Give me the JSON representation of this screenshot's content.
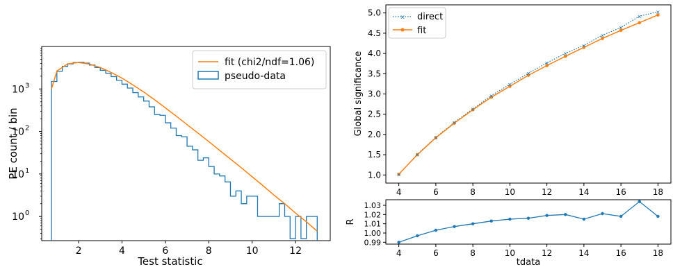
{
  "colors": {
    "blue": "#1f77b4",
    "orange": "#ff7f0e",
    "axis": "#000000"
  },
  "chart_data": [
    {
      "type": "histogram",
      "xlabel": "Test statistic",
      "ylabel": "PE count / bin",
      "yscale": "log",
      "xlim": [
        0.3,
        13.6
      ],
      "ylim": [
        0.27,
        10000
      ],
      "xticks": [
        2,
        4,
        6,
        8,
        10,
        12
      ],
      "xtick_labels": [
        "2",
        "4",
        "6",
        "8",
        "10",
        "12"
      ],
      "yticks": [
        1,
        10,
        100,
        1000
      ],
      "ytick_base": "10",
      "ytick_exps": [
        "0",
        "1",
        "2",
        "3"
      ],
      "legend": {
        "location": "upper right",
        "entries": [
          "fit (chi2/ndf=1.06)",
          "pseudo-data"
        ]
      },
      "series": [
        {
          "name": "pseudo-data",
          "style": "step-outline",
          "bin_edges": [
            0.75,
            1.0,
            1.25,
            1.5,
            1.75,
            2.0,
            2.25,
            2.5,
            2.75,
            3.0,
            3.25,
            3.5,
            3.75,
            4.0,
            4.25,
            4.5,
            4.75,
            5.0,
            5.25,
            5.5,
            5.75,
            6.0,
            6.25,
            6.5,
            6.75,
            7.0,
            7.25,
            7.5,
            7.75,
            8.0,
            8.25,
            8.5,
            8.75,
            9.0,
            9.25,
            9.5,
            9.75,
            10.0,
            10.25,
            10.5,
            10.75,
            11.0,
            11.25,
            11.5,
            11.75,
            12.0,
            12.25,
            12.5,
            12.75,
            13.0
          ],
          "counts": [
            1500,
            2600,
            3400,
            3900,
            4200,
            4250,
            4050,
            3650,
            3200,
            2750,
            2350,
            1950,
            1600,
            1300,
            1050,
            820,
            650,
            520,
            380,
            250,
            240,
            160,
            120,
            80,
            75,
            45,
            37,
            21,
            24,
            15,
            10,
            9,
            6.5,
            3,
            4,
            2,
            3,
            3,
            1,
            1,
            1,
            1,
            2,
            1,
            0.3,
            1,
            0.3,
            1,
            1
          ]
        },
        {
          "name": "fit (chi2/ndf=1.06)",
          "style": "line",
          "x": [
            0.75,
            1.0,
            1.5,
            2.0,
            2.5,
            3.0,
            3.5,
            4.0,
            4.5,
            5.0,
            5.5,
            6.0,
            6.5,
            7.0,
            7.5,
            8.0,
            8.5,
            9.0,
            9.5,
            10.0,
            10.5,
            11.0,
            11.5,
            12.0,
            12.5,
            13.0
          ],
          "y": [
            1000,
            2650,
            3900,
            4200,
            3850,
            3200,
            2450,
            1800,
            1250,
            850,
            560,
            360,
            230,
            145,
            92,
            58,
            36,
            22.5,
            14,
            8.6,
            5.3,
            3.2,
            2.0,
            1.2,
            0.75,
            0.45
          ]
        }
      ]
    },
    {
      "type": "line",
      "xlabel": "",
      "ylabel": "Global significance",
      "xlim": [
        3.3,
        18.7
      ],
      "ylim": [
        0.8,
        5.2
      ],
      "xticks": [
        4,
        6,
        8,
        10,
        12,
        14,
        16,
        18
      ],
      "xtick_labels": [
        "4",
        "6",
        "8",
        "10",
        "12",
        "14",
        "16",
        "18"
      ],
      "yticks": [
        1.0,
        1.5,
        2.0,
        2.5,
        3.0,
        3.5,
        4.0,
        4.5,
        5.0
      ],
      "ytick_labels": [
        "1.0",
        "1.5",
        "2.0",
        "2.5",
        "3.0",
        "3.5",
        "4.0",
        "4.5",
        "5.0"
      ],
      "legend": {
        "location": "upper left",
        "entries": [
          "direct",
          "fit"
        ]
      },
      "x": [
        4,
        5,
        6,
        7,
        8,
        9,
        10,
        11,
        12,
        13,
        14,
        15,
        16,
        17,
        18
      ],
      "series": [
        {
          "name": "direct",
          "style": "dotted-x",
          "values": [
            1.01,
            1.51,
            1.93,
            2.3,
            2.63,
            2.96,
            3.24,
            3.51,
            3.77,
            4.0,
            4.2,
            4.45,
            4.64,
            4.92,
            5.03
          ]
        },
        {
          "name": "fit",
          "style": "solid-dot",
          "values": [
            1.02,
            1.5,
            1.92,
            2.28,
            2.61,
            2.92,
            3.19,
            3.46,
            3.7,
            3.93,
            4.15,
            4.37,
            4.57,
            4.76,
            4.95
          ]
        }
      ]
    },
    {
      "type": "line",
      "xlabel": "tdata",
      "ylabel": "R",
      "xlim": [
        3.3,
        18.7
      ],
      "ylim": [
        0.988,
        1.036
      ],
      "xticks": [
        4,
        6,
        8,
        10,
        12,
        14,
        16,
        18
      ],
      "xtick_labels": [
        "4",
        "6",
        "8",
        "10",
        "12",
        "14",
        "16",
        "18"
      ],
      "yticks": [
        0.99,
        1.0,
        1.01,
        1.02,
        1.03
      ],
      "ytick_labels": [
        "0.99",
        "1.00",
        "1.01",
        "1.02",
        "1.03"
      ],
      "x": [
        4,
        5,
        6,
        7,
        8,
        9,
        10,
        11,
        12,
        13,
        14,
        15,
        16,
        17,
        18
      ],
      "series": [
        {
          "style": "solid-dot",
          "values": [
            0.99,
            0.997,
            1.003,
            1.007,
            1.01,
            1.013,
            1.015,
            1.016,
            1.019,
            1.02,
            1.015,
            1.021,
            1.018,
            1.034,
            1.018
          ]
        }
      ]
    }
  ]
}
